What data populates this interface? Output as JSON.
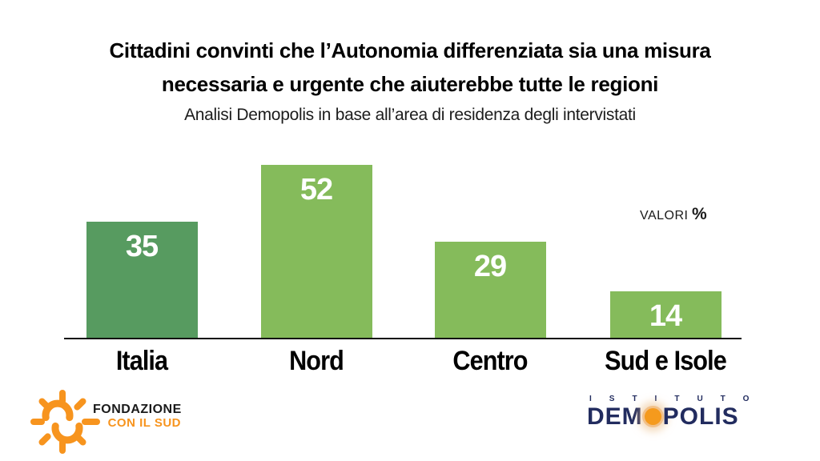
{
  "title": {
    "line1": "Cittadini convinti che l’Autonomia differenziata sia una misura",
    "line2": "necessaria e urgente che aiuterebbe tutte le regioni",
    "subtitle": "Analisi Demopolis in base all’area di residenza degli intervistati"
  },
  "chart_data": {
    "type": "bar",
    "categories": [
      "Italia",
      "Nord",
      "Centro",
      "Sud e Isole"
    ],
    "values": [
      35,
      52,
      29,
      14
    ],
    "title": "Cittadini convinti che l’Autonomia differenziata sia una misura necessaria e urgente che aiuterebbe tutte le regioni",
    "subtitle": "Analisi Demopolis in base all’area di residenza degli intervistati",
    "xlabel": "",
    "ylabel": "",
    "ylim": [
      0,
      55
    ],
    "grid": false,
    "legend": "none",
    "unit_label_text": "VALORI",
    "unit_label_symbol": "%",
    "bar_colors": [
      "#579b60",
      "#85bb5b",
      "#85bb5b",
      "#85bb5b"
    ],
    "value_label_color": "#ffffff",
    "axis_color": "#111111"
  },
  "footer": {
    "fondazione": {
      "icon": "sun-icon",
      "line1": "FONDAZIONE",
      "line2": "CON IL SUD",
      "orange": "#f7941e",
      "black": "#1a1a1a"
    },
    "demopolis": {
      "istituto": "ISTITUTO",
      "name_pre": "DEM",
      "name_post": "POLIS",
      "navy": "#222c5f",
      "orange": "#f59a1d"
    }
  }
}
